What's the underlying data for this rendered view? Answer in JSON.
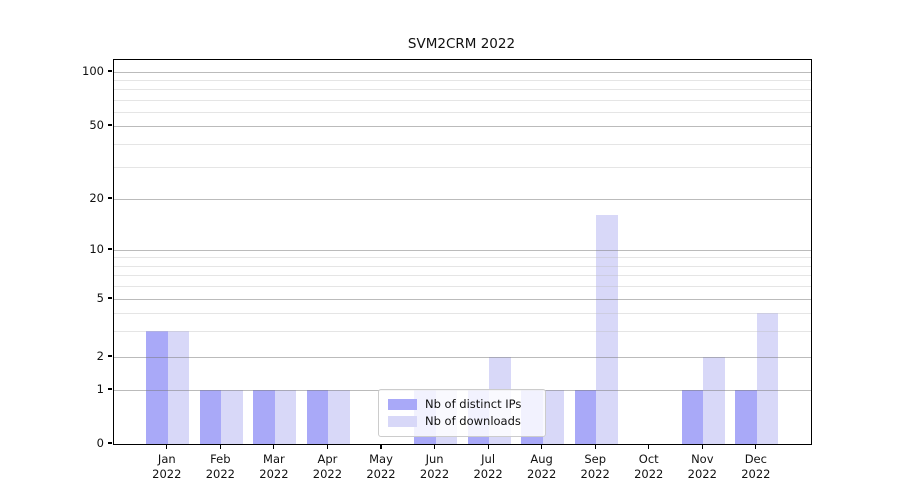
{
  "title": "SVM2CRM 2022",
  "chart_data": {
    "type": "bar",
    "title": "SVM2CRM 2022",
    "categories": [
      "Jan",
      "Feb",
      "Mar",
      "Apr",
      "May",
      "Jun",
      "Jul",
      "Aug",
      "Sep",
      "Oct",
      "Nov",
      "Dec"
    ],
    "x_year_label": "2022",
    "series": [
      {
        "name": "Nb of distinct IPs",
        "color": "#a9a9f8",
        "values": [
          3,
          1,
          1,
          1,
          0,
          1,
          1,
          1,
          1,
          0,
          1,
          1
        ]
      },
      {
        "name": "Nb of downloads",
        "color": "#d8d8f8",
        "values": [
          3,
          1,
          1,
          1,
          0,
          1,
          2,
          1,
          16,
          0,
          2,
          4
        ]
      }
    ],
    "yscale": "log-like (0,1 then log decades)",
    "yticks": [
      0,
      1,
      2,
      5,
      10,
      20,
      50,
      100
    ],
    "minor_yticks": [
      3,
      4,
      6,
      7,
      8,
      9,
      30,
      40,
      60,
      70,
      80,
      90
    ],
    "ylim": [
      0,
      115
    ],
    "xlabel": "",
    "ylabel": "",
    "grid": "horizontal major+minor, drawn over bars",
    "legend_position": "lower center, inside plot",
    "colors": {
      "bar_distinct_ips": "#a9a9f8",
      "bar_downloads": "#d8d8f8",
      "axis": "#000000",
      "grid_major": "#c2c2c2",
      "grid_minor": "#e7e7e7",
      "legend_border": "#cccccc",
      "background": "#ffffff"
    }
  }
}
